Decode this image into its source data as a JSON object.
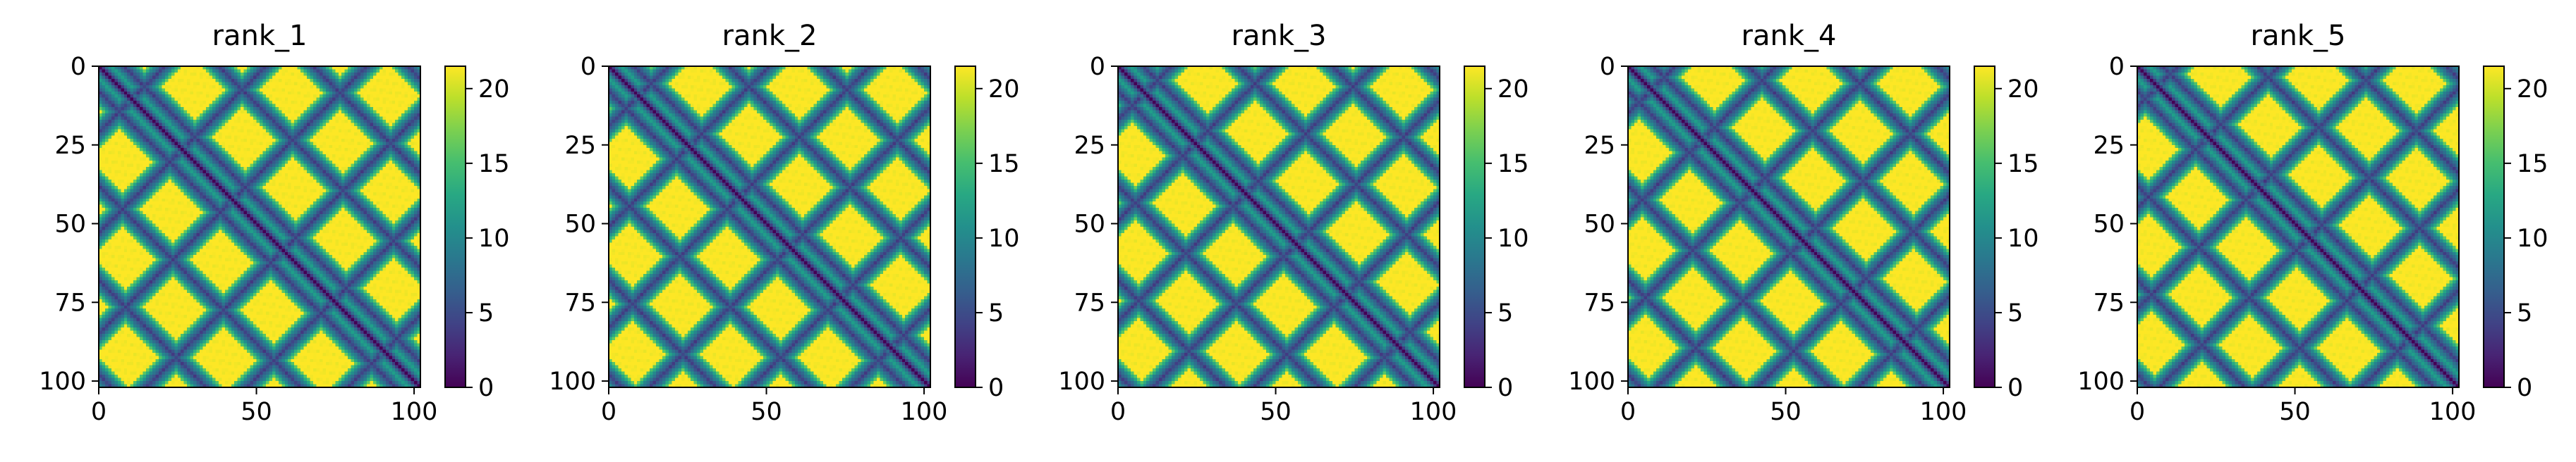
{
  "chart_data": [
    {
      "type": "heatmap",
      "title": "rank_1",
      "n": 102,
      "xlim": [
        0,
        102
      ],
      "ylim": [
        102,
        0
      ],
      "xticks": [
        0,
        50,
        100
      ],
      "xtick_labels": [
        "0",
        "50",
        "100"
      ],
      "yticks": [
        0,
        25,
        50,
        75,
        100
      ],
      "ytick_labels": [
        "0",
        "25",
        "50",
        "75",
        "100"
      ],
      "colorbar": {
        "min": 0,
        "max": 21.5,
        "colormap": "viridis",
        "ticks": [
          0,
          5,
          10,
          15,
          20
        ],
        "tick_labels": [
          "0",
          "5",
          "10",
          "15",
          "20"
        ]
      }
    },
    {
      "type": "heatmap",
      "title": "rank_2",
      "n": 102,
      "xlim": [
        0,
        102
      ],
      "ylim": [
        102,
        0
      ],
      "xticks": [
        0,
        50,
        100
      ],
      "xtick_labels": [
        "0",
        "50",
        "100"
      ],
      "yticks": [
        0,
        25,
        50,
        75,
        100
      ],
      "ytick_labels": [
        "0",
        "25",
        "50",
        "75",
        "100"
      ],
      "colorbar": {
        "min": 0,
        "max": 21.5,
        "colormap": "viridis",
        "ticks": [
          0,
          5,
          10,
          15,
          20
        ],
        "tick_labels": [
          "0",
          "5",
          "10",
          "15",
          "20"
        ]
      }
    },
    {
      "type": "heatmap",
      "title": "rank_3",
      "n": 102,
      "xlim": [
        0,
        102
      ],
      "ylim": [
        102,
        0
      ],
      "xticks": [
        0,
        50,
        100
      ],
      "xtick_labels": [
        "0",
        "50",
        "100"
      ],
      "yticks": [
        0,
        25,
        50,
        75,
        100
      ],
      "ytick_labels": [
        "0",
        "25",
        "50",
        "75",
        "100"
      ],
      "colorbar": {
        "min": 0,
        "max": 21.5,
        "colormap": "viridis",
        "ticks": [
          0,
          5,
          10,
          15,
          20
        ],
        "tick_labels": [
          "0",
          "5",
          "10",
          "15",
          "20"
        ]
      }
    },
    {
      "type": "heatmap",
      "title": "rank_4",
      "n": 102,
      "xlim": [
        0,
        102
      ],
      "ylim": [
        102,
        0
      ],
      "xticks": [
        0,
        50,
        100
      ],
      "xtick_labels": [
        "0",
        "50",
        "100"
      ],
      "yticks": [
        0,
        25,
        50,
        75,
        100
      ],
      "ytick_labels": [
        "0",
        "25",
        "50",
        "75",
        "100"
      ],
      "colorbar": {
        "min": 0,
        "max": 21.5,
        "colormap": "viridis",
        "ticks": [
          0,
          5,
          10,
          15,
          20
        ],
        "tick_labels": [
          "0",
          "5",
          "10",
          "15",
          "20"
        ]
      }
    },
    {
      "type": "heatmap",
      "title": "rank_5",
      "n": 102,
      "xlim": [
        0,
        102
      ],
      "ylim": [
        102,
        0
      ],
      "xticks": [
        0,
        50,
        100
      ],
      "xtick_labels": [
        "0",
        "50",
        "100"
      ],
      "yticks": [
        0,
        25,
        50,
        75,
        100
      ],
      "ytick_labels": [
        "0",
        "25",
        "50",
        "75",
        "100"
      ],
      "colorbar": {
        "min": 0,
        "max": 21.5,
        "colormap": "viridis",
        "ticks": [
          0,
          5,
          10,
          15,
          20
        ],
        "tick_labels": [
          "0",
          "5",
          "10",
          "15",
          "20"
        ]
      }
    }
  ]
}
